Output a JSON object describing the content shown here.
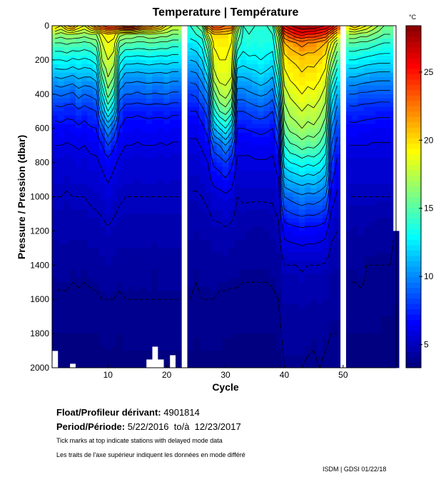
{
  "chart_data": {
    "type": "heatmap",
    "title": "Temperature | Température",
    "xlabel": "Cycle",
    "ylabel": "Pressure / Pression (dbar)",
    "xlim": [
      0.5,
      59
    ],
    "ylim": [
      2000,
      0
    ],
    "x_ticks": [
      10,
      20,
      30,
      40,
      50
    ],
    "y_ticks": [
      0,
      200,
      400,
      600,
      800,
      1000,
      1200,
      1400,
      1600,
      1800,
      2000
    ],
    "colorbar": {
      "unit": "°C",
      "range": [
        3.3,
        28.4
      ],
      "ticks": [
        5,
        10,
        15,
        20,
        25
      ],
      "colormap": "jet"
    },
    "contour_interval": 1,
    "pressures": [
      0,
      50,
      100,
      200,
      300,
      400,
      500,
      600,
      700,
      800,
      1000,
      1200,
      1400,
      1600,
      1800,
      2000
    ],
    "cycles": [
      1,
      2,
      3,
      4,
      5,
      6,
      7,
      8,
      9,
      10,
      11,
      12,
      13,
      14,
      15,
      16,
      17,
      18,
      19,
      20,
      21,
      22,
      23,
      24,
      25,
      26,
      27,
      28,
      29,
      30,
      31,
      32,
      33,
      34,
      35,
      36,
      37,
      38,
      39,
      40,
      41,
      42,
      43,
      44,
      45,
      46,
      47,
      48,
      49,
      50,
      51,
      52,
      53,
      54,
      55,
      56,
      57,
      58,
      59
    ],
    "max_pressure": [
      1900,
      2000,
      2000,
      1980,
      2000,
      2000,
      2000,
      2000,
      2000,
      2000,
      2000,
      2000,
      2000,
      2000,
      2000,
      2000,
      1960,
      1890,
      1960,
      2000,
      1930,
      2000,
      0,
      2000,
      2000,
      2000,
      2000,
      2000,
      2000,
      2000,
      2000,
      2000,
      2000,
      2000,
      2000,
      2000,
      2000,
      2000,
      2000,
      2000,
      2000,
      2000,
      2000,
      2000,
      2000,
      2000,
      2000,
      2000,
      2000,
      0,
      2000,
      2000,
      2000,
      2000,
      2000,
      2000,
      2000,
      2000,
      2000
    ],
    "temperature": [
      [
        20,
        17,
        15,
        13,
        11,
        9,
        7.5,
        6.6,
        6,
        5.6,
        5,
        4.6,
        4.2,
        3.9,
        3.7,
        3.5
      ],
      [
        19,
        16.5,
        15,
        13,
        11.2,
        9.2,
        7.6,
        6.7,
        6,
        5.6,
        5,
        4.6,
        4.3,
        3.9,
        3.7,
        3.5
      ],
      [
        21,
        17,
        15.2,
        13.2,
        11,
        9,
        7.4,
        6.5,
        5.9,
        5.5,
        4.9,
        4.6,
        4.3,
        3.9,
        3.7,
        3.5
      ],
      [
        22,
        17,
        15,
        12.8,
        10.8,
        8.8,
        7.4,
        6.6,
        6,
        5.6,
        5,
        4.6,
        4.1,
        3.9,
        3.7,
        3.5
      ],
      [
        20,
        16.8,
        15,
        13,
        11.2,
        9.4,
        7.8,
        6.8,
        6.1,
        5.7,
        5,
        4.6,
        4.2,
        3.9,
        3.7,
        3.5
      ],
      [
        19,
        16.5,
        14.8,
        12.8,
        11,
        9,
        7.5,
        6.6,
        6,
        5.6,
        5,
        4.6,
        4.1,
        3.9,
        3.7,
        3.5
      ],
      [
        21,
        17,
        15,
        13,
        11,
        9.2,
        7.8,
        6.9,
        6.2,
        5.8,
        5.1,
        4.7,
        4.2,
        3.9,
        3.7,
        3.5
      ],
      [
        23,
        17,
        15.5,
        13.5,
        11.5,
        9.5,
        8,
        7,
        6.3,
        5.8,
        5.2,
        4.7,
        4.3,
        3.9,
        3.7,
        3.5
      ],
      [
        24,
        19,
        18,
        17,
        15,
        13,
        11,
        8.5,
        7,
        6.2,
        5.3,
        4.8,
        4.4,
        4,
        3.8,
        3.5
      ],
      [
        25,
        20,
        19,
        18,
        17,
        15.5,
        13,
        10,
        8,
        6.6,
        5.6,
        4.9,
        4.5,
        4,
        3.8,
        3.6
      ],
      [
        25,
        19.5,
        18.5,
        17.5,
        16,
        14,
        11.5,
        8.8,
        7.2,
        6.2,
        5.3,
        4.8,
        4.4,
        4,
        3.8,
        3.5
      ],
      [
        25,
        17.5,
        15.5,
        13.5,
        11.5,
        9.5,
        8,
        7,
        6.3,
        5.8,
        5.1,
        4.7,
        4.3,
        3.9,
        3.7,
        3.5
      ],
      [
        26,
        17,
        15,
        12.5,
        10.5,
        9,
        7.3,
        6.5,
        6,
        5.6,
        5,
        4.7,
        4.3,
        4,
        3.8,
        3.6
      ],
      [
        26,
        17,
        15,
        12.5,
        10.5,
        9,
        7.3,
        6.5,
        6,
        5.6,
        5,
        4.7,
        4.2,
        4,
        3.8,
        3.6
      ],
      [
        25,
        16.5,
        14.8,
        12.4,
        10.4,
        8.8,
        7.2,
        6.4,
        5.9,
        5.5,
        5,
        4.7,
        4.3,
        4,
        3.8,
        3.6
      ],
      [
        23,
        16.5,
        14.8,
        12.5,
        10.5,
        9,
        7.3,
        6.5,
        6,
        5.6,
        5,
        4.7,
        4.2,
        4,
        3.8,
        3.6
      ],
      [
        23,
        17,
        15,
        12.6,
        10.6,
        9,
        7.4,
        6.5,
        6,
        5.6,
        5,
        4.7,
        4.3,
        4,
        3.8,
        3.6
      ],
      [
        22,
        16.8,
        15,
        12.5,
        10.5,
        8.9,
        7.3,
        6.5,
        6,
        5.6,
        5,
        4.7,
        4.1,
        4,
        3.8,
        3.6
      ],
      [
        21,
        16.5,
        14.8,
        12.4,
        10.5,
        9,
        7.3,
        6.5,
        5.9,
        5.5,
        5,
        4.7,
        4.3,
        4,
        3.8,
        3.6
      ],
      [
        19,
        16.5,
        14.8,
        12.5,
        10.6,
        9,
        7.4,
        6.5,
        6,
        5.6,
        5,
        4.7,
        4.3,
        4,
        3.8,
        3.6
      ],
      [
        18,
        16,
        14.5,
        12.3,
        10.4,
        8.8,
        7.2,
        6.4,
        5.9,
        5.5,
        5,
        4.7,
        4.3,
        4,
        3.8,
        3.6
      ],
      [
        18,
        16,
        14.5,
        12.3,
        10.4,
        8.8,
        7.2,
        6.4,
        5.9,
        5.5,
        5,
        4.7,
        4.3,
        4,
        3.8,
        3.6
      ],
      [
        null,
        null,
        null,
        null,
        null,
        null,
        null,
        null,
        null,
        null,
        null,
        null,
        null,
        null,
        null,
        null
      ],
      [
        14,
        13.5,
        12.5,
        11,
        9.5,
        8,
        7,
        6.3,
        5.8,
        5.5,
        4.9,
        4.6,
        4.2,
        4,
        3.8,
        3.6
      ],
      [
        15,
        14,
        12.8,
        11.2,
        9.6,
        8.2,
        7,
        6.3,
        5.8,
        5.5,
        4.9,
        4.5,
        4.1,
        3.9,
        3.7,
        3.6
      ],
      [
        16,
        14.5,
        13.5,
        12,
        10.5,
        9,
        7.6,
        6.7,
        6.1,
        5.7,
        5,
        4.6,
        4.2,
        4,
        3.8,
        3.6
      ],
      [
        22,
        18,
        16,
        14,
        12,
        10,
        8.5,
        7.5,
        6.5,
        6,
        5.2,
        4.6,
        4.2,
        4,
        3.8,
        3.6
      ],
      [
        24,
        20,
        19.2,
        18.5,
        17.5,
        15.5,
        13.5,
        11,
        8.5,
        7.2,
        5.5,
        4.8,
        4.3,
        4,
        3.8,
        3.6
      ],
      [
        24,
        20,
        19.5,
        19,
        18.5,
        17,
        15,
        12,
        9,
        7.5,
        5.6,
        4.8,
        4.3,
        3.9,
        3.8,
        3.6
      ],
      [
        23,
        20,
        19.5,
        19,
        18.5,
        17.5,
        15.5,
        13,
        10,
        8,
        5.8,
        4.9,
        4.3,
        3.9,
        3.7,
        3.6
      ],
      [
        23,
        19.5,
        19,
        18.5,
        18,
        16.5,
        14.5,
        11.5,
        9,
        7.3,
        5.6,
        4.8,
        4.2,
        3.9,
        3.7,
        3.6
      ],
      [
        18,
        16,
        15,
        13,
        11,
        9.5,
        8,
        7,
        6.3,
        5.8,
        5,
        4.6,
        4.2,
        3.9,
        3.7,
        3.5
      ],
      [
        14,
        13.8,
        13.5,
        12.5,
        11,
        9.5,
        8,
        7,
        6.3,
        5.8,
        5.1,
        4.6,
        4.1,
        3.9,
        3.7,
        3.5
      ],
      [
        14.5,
        14,
        13.7,
        12.8,
        11.2,
        9.8,
        8.2,
        7.1,
        6.3,
        5.8,
        5.1,
        4.5,
        4.1,
        3.9,
        3.7,
        3.5
      ],
      [
        14,
        13.8,
        13.5,
        12.8,
        11.5,
        10,
        8.5,
        7.2,
        6.4,
        5.9,
        5.1,
        4.4,
        4.1,
        3.9,
        3.7,
        3.5
      ],
      [
        14,
        13.8,
        13.6,
        13,
        11.8,
        10.2,
        8.6,
        7.3,
        6.5,
        5.9,
        5.1,
        4.4,
        4.1,
        3.9,
        3.7,
        3.5
      ],
      [
        14,
        13.8,
        13.5,
        12.8,
        11.5,
        10,
        8.4,
        7.2,
        6.4,
        5.9,
        5.1,
        4.5,
        4.1,
        3.9,
        3.7,
        3.5
      ],
      [
        15,
        14,
        13.5,
        12.5,
        11,
        9.5,
        8,
        7,
        6.3,
        5.8,
        5.1,
        4.6,
        4.2,
        3.9,
        3.7,
        3.5
      ],
      [
        20,
        17,
        16,
        15,
        13.5,
        12,
        10,
        8.5,
        7.2,
        6.5,
        5.4,
        4.8,
        4.3,
        4,
        3.8,
        3.6
      ],
      [
        26,
        23,
        21,
        19.5,
        18.5,
        17.5,
        16.5,
        15.5,
        14,
        12.5,
        9,
        6.3,
        5,
        4.5,
        4.2,
        4
      ],
      [
        27,
        24,
        21.5,
        20,
        19.2,
        18.2,
        17.3,
        16.3,
        14.8,
        13,
        9.3,
        6.5,
        5,
        4.5,
        4.2,
        4
      ],
      [
        27.5,
        25,
        22,
        20.2,
        19.5,
        18.6,
        17.6,
        16.6,
        15,
        13.2,
        9.6,
        6.6,
        5,
        4.5,
        4.2,
        4
      ],
      [
        28,
        25.5,
        22.5,
        20.5,
        19.8,
        19,
        18,
        17,
        15.5,
        13.5,
        9.8,
        6.7,
        5.1,
        4.6,
        4.2,
        4
      ],
      [
        28,
        25,
        22,
        20.3,
        19.5,
        18.6,
        17.6,
        16.6,
        15.2,
        13.2,
        9.6,
        6.6,
        5,
        4.5,
        4.2,
        3.9
      ],
      [
        28,
        25,
        22,
        20.3,
        19.6,
        18.8,
        17.8,
        16.8,
        15.3,
        13.4,
        9.7,
        6.6,
        5,
        4.5,
        4.1,
        3.9
      ],
      [
        27.5,
        24.5,
        21.5,
        20,
        19.2,
        18.3,
        17.3,
        16.3,
        14.8,
        13,
        9.4,
        6.5,
        5,
        4.5,
        4.2,
        4
      ],
      [
        27,
        24,
        21,
        19.5,
        18.5,
        17.5,
        16.5,
        15.2,
        13.8,
        12.2,
        9,
        6.3,
        4.9,
        4.5,
        4.1,
        3.9
      ],
      [
        26,
        22,
        19,
        17,
        15,
        13,
        11.5,
        10,
        9,
        8,
        6.5,
        5.2,
        4.6,
        4.2,
        4,
        3.8
      ],
      [
        24,
        20,
        17,
        15,
        13,
        11,
        9.5,
        8.5,
        7.5,
        6.8,
        5.8,
        5,
        4.5,
        4.2,
        4,
        3.8
      ],
      [
        null,
        null,
        null,
        null,
        null,
        null,
        null,
        null,
        null,
        null,
        null,
        null,
        null,
        null,
        null,
        null
      ],
      [
        20,
        17,
        15,
        13,
        11,
        9,
        7.5,
        6.7,
        6,
        5.6,
        5,
        4.5,
        4.1,
        3.9,
        3.7,
        3.5
      ],
      [
        21,
        17,
        15,
        13,
        11,
        9,
        7.6,
        6.7,
        6,
        5.6,
        5,
        4.4,
        4.1,
        3.9,
        3.7,
        3.5
      ],
      [
        20,
        16.5,
        14.8,
        12.8,
        10.8,
        8.8,
        7.5,
        6.6,
        6,
        5.6,
        5,
        4.5,
        4.2,
        3.9,
        3.7,
        3.5
      ],
      [
        19,
        16.5,
        14.8,
        12.6,
        10.6,
        8.8,
        7.4,
        6.6,
        6,
        5.6,
        5,
        4.4,
        4,
        3.9,
        3.7,
        3.5
      ],
      [
        18,
        16,
        14.5,
        12.5,
        10.5,
        8.7,
        7.4,
        6.5,
        5.9,
        5.6,
        5,
        4.3,
        4,
        3.9,
        3.7,
        3.5
      ],
      [
        17,
        15.5,
        14.2,
        12.4,
        10.4,
        8.6,
        7.3,
        6.5,
        5.9,
        5.6,
        5,
        4.2,
        4,
        3.8,
        3.7,
        3.5
      ],
      [
        16,
        15,
        14,
        12.4,
        10.4,
        8.6,
        7.3,
        6.5,
        5.9,
        5.6,
        5,
        4.2,
        4,
        3.8,
        3.6,
        3.5
      ],
      [
        16,
        15,
        14,
        12.4,
        10.4,
        8.6,
        7.3,
        6.5,
        5.9,
        5.6,
        5,
        4.2,
        4,
        3.8,
        3.6,
        3.5
      ],
      [
        null,
        null,
        null,
        null,
        null,
        null,
        null,
        null,
        null,
        null,
        null,
        3.9,
        3.8,
        3.7,
        3.6,
        3.5
      ]
    ]
  },
  "footer": {
    "float_label": "Float/Profileur dérivant:",
    "float_id": "4901814",
    "period_label": "Period/Période:",
    "period_value": "5/22/2016  to/à  12/23/2017",
    "note_en": "Tick marks at top indicate stations with delayed mode data",
    "note_fr": "Les traits de l'axe supérieur indiquent les données en mode différé",
    "credit": "ISDM | GDSI 01/22/18"
  }
}
